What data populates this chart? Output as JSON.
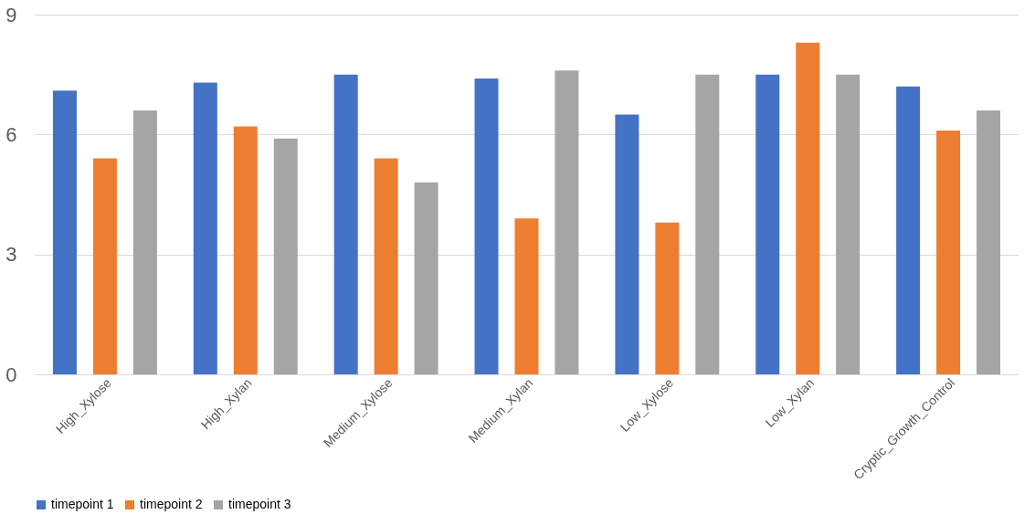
{
  "chart_data": {
    "type": "bar",
    "categories": [
      "High_Xylose",
      "High_Xylan",
      "Medium_Xylose",
      "Medium_Xylan",
      "Low_Xylose",
      "Low_Xylan",
      "Cryptic_Growth_Control"
    ],
    "series": [
      {
        "name": "timepoint 1",
        "color": "#4472c4",
        "values": [
          7.1,
          7.3,
          7.5,
          7.4,
          6.5,
          7.5,
          7.2
        ]
      },
      {
        "name": "timepoint 2",
        "color": "#ed7d31",
        "values": [
          5.4,
          6.2,
          5.4,
          3.9,
          3.8,
          8.3,
          6.1
        ]
      },
      {
        "name": "timepoint 3",
        "color": "#a5a5a5",
        "values": [
          6.6,
          5.9,
          4.8,
          7.6,
          7.5,
          7.5,
          6.6
        ]
      }
    ],
    "ylim": [
      0,
      9
    ],
    "yticks": [
      0,
      3,
      6,
      9
    ],
    "grid": "y",
    "legend": "bottom"
  }
}
